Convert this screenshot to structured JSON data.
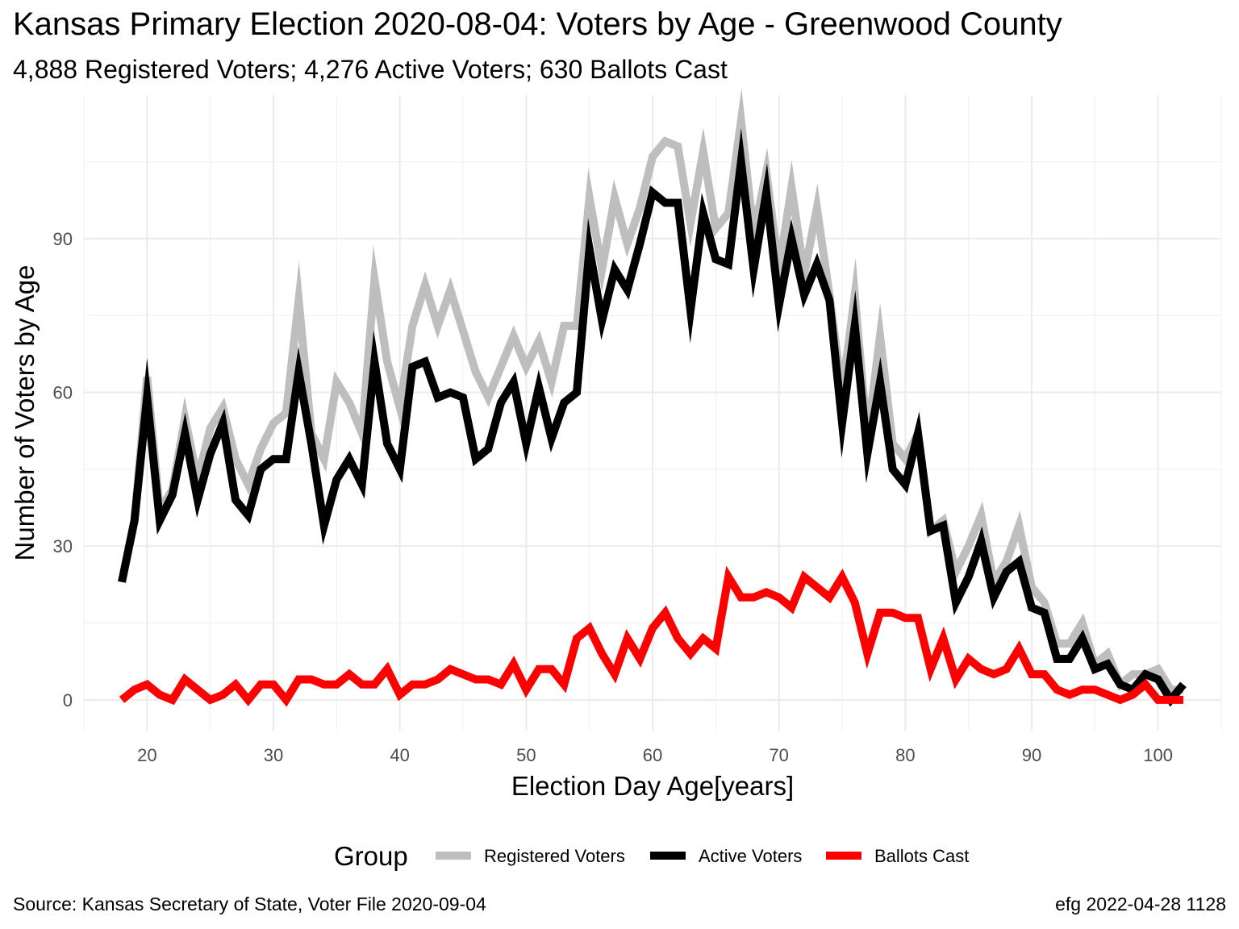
{
  "title": "Kansas Primary Election 2020-08-04:  Voters by Age - Greenwood County",
  "subtitle": "4,888 Registered Voters; 4,276 Active Voters; 630 Ballots Cast",
  "caption_left": "Source:  Kansas Secretary of State, Voter File  2020-09-04",
  "caption_right": "efg 2022-04-28 1128",
  "chart_data": {
    "type": "line",
    "xlabel": "Election Day Age[years]",
    "ylabel": "Number of Voters by Age",
    "xlim": [
      15,
      105
    ],
    "ylim": [
      -6,
      118
    ],
    "x_ticks": [
      20,
      30,
      40,
      50,
      60,
      70,
      80,
      90,
      100
    ],
    "y_ticks": [
      0,
      30,
      60,
      90
    ],
    "grid": true,
    "legend_title": "Group",
    "legend_position": "bottom",
    "series": [
      {
        "name": "Registered Voters",
        "color": "#BEBEBE",
        "x": [
          18,
          19,
          20,
          21,
          22,
          23,
          24,
          25,
          26,
          27,
          28,
          29,
          30,
          31,
          32,
          33,
          34,
          35,
          36,
          37,
          38,
          39,
          40,
          41,
          42,
          43,
          44,
          45,
          46,
          47,
          48,
          49,
          50,
          51,
          52,
          53,
          54,
          55,
          56,
          57,
          58,
          59,
          60,
          61,
          62,
          63,
          64,
          65,
          66,
          67,
          68,
          69,
          70,
          71,
          72,
          73,
          74,
          75,
          76,
          77,
          78,
          79,
          80,
          81,
          82,
          83,
          84,
          85,
          86,
          87,
          88,
          89,
          90,
          91,
          92,
          93,
          94,
          95,
          96,
          97,
          98,
          99,
          100,
          101,
          102
        ],
        "values": [
          23,
          35,
          63,
          37,
          41,
          55,
          43,
          53,
          57,
          47,
          42,
          49,
          54,
          56,
          78,
          52,
          47,
          62,
          58,
          52,
          82,
          66,
          57,
          73,
          81,
          73,
          80,
          72,
          64,
          59,
          65,
          71,
          65,
          70,
          62,
          73,
          73,
          98,
          84,
          98,
          89,
          96,
          106,
          109,
          108,
          93,
          107,
          92,
          95,
          113,
          91,
          103,
          84,
          100,
          83,
          96,
          79,
          60,
          79,
          51,
          71,
          50,
          47,
          52,
          33,
          35,
          25,
          30,
          36,
          23,
          27,
          34,
          22,
          19,
          11,
          11,
          15,
          7,
          9,
          3,
          5,
          5,
          6,
          2,
          2
        ]
      },
      {
        "name": "Active Voters",
        "color": "#000000",
        "x": [
          18,
          19,
          20,
          21,
          22,
          23,
          24,
          25,
          26,
          27,
          28,
          29,
          30,
          31,
          32,
          33,
          34,
          35,
          36,
          37,
          38,
          39,
          40,
          41,
          42,
          43,
          44,
          45,
          46,
          47,
          48,
          49,
          50,
          51,
          52,
          53,
          54,
          55,
          56,
          57,
          58,
          59,
          60,
          61,
          62,
          63,
          64,
          65,
          66,
          67,
          68,
          69,
          70,
          71,
          72,
          73,
          74,
          75,
          76,
          77,
          78,
          79,
          80,
          81,
          82,
          83,
          84,
          85,
          86,
          87,
          88,
          89,
          90,
          91,
          92,
          93,
          94,
          95,
          96,
          97,
          98,
          99,
          100,
          101,
          102
        ],
        "values": [
          23,
          35,
          59,
          35,
          40,
          52,
          39,
          48,
          54,
          39,
          36,
          45,
          47,
          47,
          64,
          50,
          34,
          43,
          47,
          42,
          66,
          50,
          45,
          65,
          66,
          59,
          60,
          59,
          47,
          49,
          58,
          62,
          50,
          61,
          51,
          58,
          60,
          88,
          74,
          84,
          80,
          89,
          99,
          97,
          97,
          76,
          95,
          86,
          85,
          105,
          84,
          99,
          77,
          90,
          79,
          85,
          78,
          54,
          73,
          48,
          62,
          45,
          42,
          52,
          33,
          34,
          19,
          24,
          31,
          20,
          25,
          27,
          18,
          17,
          8,
          8,
          12,
          6,
          7,
          3,
          2,
          5,
          4,
          0,
          3
        ]
      },
      {
        "name": "Ballots Cast",
        "color": "#FF0000",
        "x": [
          18,
          19,
          20,
          21,
          22,
          23,
          24,
          25,
          26,
          27,
          28,
          29,
          30,
          31,
          32,
          33,
          34,
          35,
          36,
          37,
          38,
          39,
          40,
          41,
          42,
          43,
          44,
          45,
          46,
          47,
          48,
          49,
          50,
          51,
          52,
          53,
          54,
          55,
          56,
          57,
          58,
          59,
          60,
          61,
          62,
          63,
          64,
          65,
          66,
          67,
          68,
          69,
          70,
          71,
          72,
          73,
          74,
          75,
          76,
          77,
          78,
          79,
          80,
          81,
          82,
          83,
          84,
          85,
          86,
          87,
          88,
          89,
          90,
          91,
          92,
          93,
          94,
          95,
          96,
          97,
          98,
          99,
          100,
          101,
          102
        ],
        "values": [
          0,
          2,
          3,
          1,
          0,
          4,
          2,
          0,
          1,
          3,
          0,
          3,
          3,
          0,
          4,
          4,
          3,
          3,
          5,
          3,
          3,
          6,
          1,
          3,
          3,
          4,
          6,
          5,
          4,
          4,
          3,
          7,
          2,
          6,
          6,
          3,
          12,
          14,
          9,
          5,
          12,
          8,
          14,
          17,
          12,
          9,
          12,
          10,
          24,
          20,
          20,
          21,
          20,
          18,
          24,
          22,
          20,
          24,
          19,
          9,
          17,
          17,
          16,
          16,
          6,
          12,
          4,
          8,
          6,
          5,
          6,
          10,
          5,
          5,
          2,
          1,
          2,
          2,
          1,
          0,
          1,
          3,
          0,
          0,
          0
        ]
      }
    ]
  }
}
